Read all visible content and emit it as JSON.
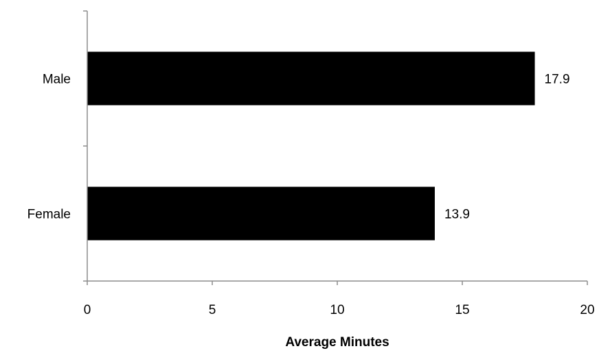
{
  "chart_data": {
    "type": "bar",
    "orientation": "horizontal",
    "categories": [
      "Male",
      "Female"
    ],
    "values": [
      17.9,
      13.9
    ],
    "data_labels": [
      "17.9",
      "13.9"
    ],
    "xlabel": "Average Minutes",
    "xlim": [
      0,
      20
    ],
    "x_ticks": [
      "0",
      "5",
      "10",
      "15",
      "20"
    ],
    "grid": false,
    "legend": "none",
    "bar_color": "#000000",
    "axis_color": "#8c8c8c"
  }
}
